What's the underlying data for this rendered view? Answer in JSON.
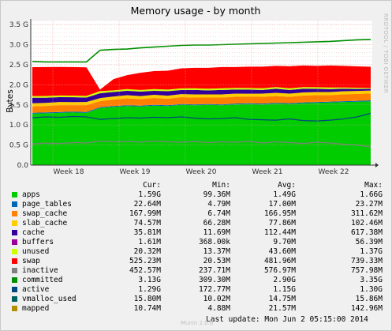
{
  "chart_data": {
    "type": "area",
    "title": "Memory usage - by month",
    "ylabel": "Bytes",
    "xlabel": "",
    "ylim": [
      0,
      3.6
    ],
    "y_ticks": [
      {
        "value": 0,
        "label": "0.0"
      },
      {
        "value": 0.5,
        "label": "0.5 G"
      },
      {
        "value": 1.0,
        "label": "1.0 G"
      },
      {
        "value": 1.5,
        "label": "1.5 G"
      },
      {
        "value": 2.0,
        "label": "2.0 G"
      },
      {
        "value": 2.5,
        "label": "2.5 G"
      },
      {
        "value": 3.0,
        "label": "3.0 G"
      },
      {
        "value": 3.5,
        "label": "3.5 G"
      }
    ],
    "x_ticks": [
      "Week 18",
      "Week 19",
      "Week 20",
      "Week 21",
      "Week 22"
    ],
    "grid": true,
    "stack_order": [
      "apps",
      "page_tables",
      "swap_cache",
      "slab_cache",
      "cache",
      "buffers",
      "unused",
      "swap"
    ],
    "line_order": [
      "inactive",
      "committed",
      "active"
    ],
    "series": [
      {
        "name": "apps",
        "color": "#00cc00",
        "values": [
          1.28,
          1.29,
          1.3,
          1.31,
          1.3,
          1.42,
          1.45,
          1.47,
          1.46,
          1.48,
          1.47,
          1.5,
          1.49,
          1.5,
          1.49,
          1.51,
          1.52,
          1.51,
          1.53,
          1.52,
          1.54,
          1.55,
          1.56,
          1.57,
          1.58,
          1.59
        ]
      },
      {
        "name": "page_tables",
        "color": "#0066b3",
        "values": [
          0.023,
          0.023,
          0.023,
          0.023,
          0.023,
          0.022,
          0.022,
          0.022,
          0.022,
          0.022,
          0.022,
          0.022,
          0.022,
          0.022,
          0.022,
          0.022,
          0.022,
          0.022,
          0.022,
          0.022,
          0.022,
          0.022,
          0.022,
          0.022,
          0.022,
          0.023
        ]
      },
      {
        "name": "swap_cache",
        "color": "#ff8000",
        "values": [
          0.16,
          0.16,
          0.17,
          0.16,
          0.17,
          0.15,
          0.16,
          0.17,
          0.16,
          0.17,
          0.16,
          0.17,
          0.17,
          0.16,
          0.17,
          0.17,
          0.16,
          0.17,
          0.17,
          0.16,
          0.17,
          0.17,
          0.16,
          0.17,
          0.17,
          0.17
        ]
      },
      {
        "name": "slab_cache",
        "color": "#ffcc00",
        "values": [
          0.075,
          0.076,
          0.078,
          0.077,
          0.078,
          0.077,
          0.078,
          0.078,
          0.077,
          0.078,
          0.078,
          0.077,
          0.078,
          0.078,
          0.078,
          0.078,
          0.077,
          0.078,
          0.078,
          0.078,
          0.078,
          0.077,
          0.078,
          0.078,
          0.075,
          0.075
        ]
      },
      {
        "name": "cache",
        "color": "#330099",
        "values": [
          0.14,
          0.13,
          0.12,
          0.12,
          0.11,
          0.12,
          0.11,
          0.11,
          0.11,
          0.1,
          0.11,
          0.1,
          0.11,
          0.1,
          0.11,
          0.1,
          0.1,
          0.09,
          0.1,
          0.09,
          0.09,
          0.08,
          0.07,
          0.06,
          0.05,
          0.04
        ]
      },
      {
        "name": "buffers",
        "color": "#990099",
        "values": [
          0.0016,
          0.0016,
          0.0016,
          0.0016,
          0.0016,
          0.0016,
          0.0016,
          0.0016,
          0.0016,
          0.0016,
          0.0016,
          0.0016,
          0.0016,
          0.0016,
          0.0016,
          0.0016,
          0.0016,
          0.0016,
          0.0016,
          0.0016,
          0.0016,
          0.0016,
          0.0016,
          0.0016,
          0.0016,
          0.0016
        ]
      },
      {
        "name": "unused",
        "color": "#ccff00",
        "values": [
          0.04,
          0.04,
          0.04,
          0.04,
          0.04,
          0.05,
          0.04,
          0.04,
          0.04,
          0.04,
          0.04,
          0.04,
          0.04,
          0.04,
          0.04,
          0.04,
          0.04,
          0.04,
          0.04,
          0.04,
          0.04,
          0.04,
          0.04,
          0.03,
          0.03,
          0.02
        ]
      },
      {
        "name": "swap",
        "color": "#ff0000",
        "values": [
          0.72,
          0.72,
          0.71,
          0.71,
          0.71,
          0.04,
          0.28,
          0.35,
          0.43,
          0.45,
          0.47,
          0.5,
          0.51,
          0.52,
          0.53,
          0.52,
          0.53,
          0.54,
          0.53,
          0.55,
          0.54,
          0.53,
          0.55,
          0.54,
          0.53,
          0.53
        ]
      },
      {
        "name": "inactive",
        "color": "#808080",
        "values": [
          0.53,
          0.55,
          0.54,
          0.56,
          0.55,
          0.6,
          0.58,
          0.59,
          0.57,
          0.6,
          0.58,
          0.57,
          0.59,
          0.56,
          0.58,
          0.57,
          0.59,
          0.55,
          0.58,
          0.56,
          0.54,
          0.57,
          0.55,
          0.52,
          0.5,
          0.45
        ]
      },
      {
        "name": "committed",
        "color": "#008f00",
        "values": [
          2.58,
          2.57,
          2.57,
          2.57,
          2.57,
          2.86,
          2.88,
          2.89,
          2.92,
          2.94,
          2.96,
          2.98,
          2.99,
          2.99,
          3.0,
          3.01,
          3.02,
          3.03,
          3.04,
          3.05,
          3.06,
          3.07,
          3.08,
          3.1,
          3.12,
          3.13
        ]
      },
      {
        "name": "active",
        "color": "#00487d",
        "values": [
          1.18,
          1.2,
          1.19,
          1.21,
          1.2,
          1.14,
          1.16,
          1.18,
          1.17,
          1.19,
          1.18,
          1.2,
          1.17,
          1.15,
          1.16,
          1.18,
          1.14,
          1.13,
          1.12,
          1.15,
          1.11,
          1.1,
          1.12,
          1.15,
          1.2,
          1.29
        ]
      }
    ]
  },
  "legend": {
    "headers": {
      "cur": "Cur:",
      "min": "Min:",
      "avg": "Avg:",
      "max": "Max:"
    },
    "rows": [
      {
        "name": "apps",
        "color": "#00cc00",
        "cur": "1.59G",
        "min": "99.36M",
        "avg": "1.49G",
        "max": "1.66G"
      },
      {
        "name": "page_tables",
        "color": "#0066b3",
        "cur": "22.64M",
        "min": "4.79M",
        "avg": "17.00M",
        "max": "23.27M"
      },
      {
        "name": "swap_cache",
        "color": "#ff8000",
        "cur": "167.99M",
        "min": "6.74M",
        "avg": "166.95M",
        "max": "311.62M"
      },
      {
        "name": "slab_cache",
        "color": "#ffcc00",
        "cur": "74.57M",
        "min": "66.28M",
        "avg": "77.86M",
        "max": "102.46M"
      },
      {
        "name": "cache",
        "color": "#330099",
        "cur": "35.81M",
        "min": "11.69M",
        "avg": "112.44M",
        "max": "617.38M"
      },
      {
        "name": "buffers",
        "color": "#990099",
        "cur": "1.61M",
        "min": "368.00k",
        "avg": "9.70M",
        "max": "56.39M"
      },
      {
        "name": "unused",
        "color": "#ccff00",
        "cur": "20.32M",
        "min": "13.37M",
        "avg": "43.60M",
        "max": "1.37G"
      },
      {
        "name": "swap",
        "color": "#ff0000",
        "cur": "525.23M",
        "min": "20.53M",
        "avg": "481.96M",
        "max": "739.33M"
      },
      {
        "name": "inactive",
        "color": "#808080",
        "cur": "452.57M",
        "min": "237.71M",
        "avg": "576.97M",
        "max": "757.98M"
      },
      {
        "name": "committed",
        "color": "#008f00",
        "cur": "3.13G",
        "min": "309.30M",
        "avg": "2.90G",
        "max": "3.35G"
      },
      {
        "name": "active",
        "color": "#00487d",
        "cur": "1.29G",
        "min": "172.77M",
        "avg": "1.15G",
        "max": "1.30G"
      },
      {
        "name": "vmalloc_used",
        "color": "#006060",
        "cur": "15.80M",
        "min": "10.02M",
        "avg": "14.75M",
        "max": "15.86M"
      },
      {
        "name": "mapped",
        "color": "#b38f00",
        "cur": "10.74M",
        "min": "4.88M",
        "avg": "21.57M",
        "max": "142.96M"
      }
    ]
  },
  "last_update": "Last update:  Mon Jun  2 05:15:00 2014",
  "footer_note": "Munin 2.0.6",
  "side_note": "RRDTOOL / TOBI OETIKER"
}
